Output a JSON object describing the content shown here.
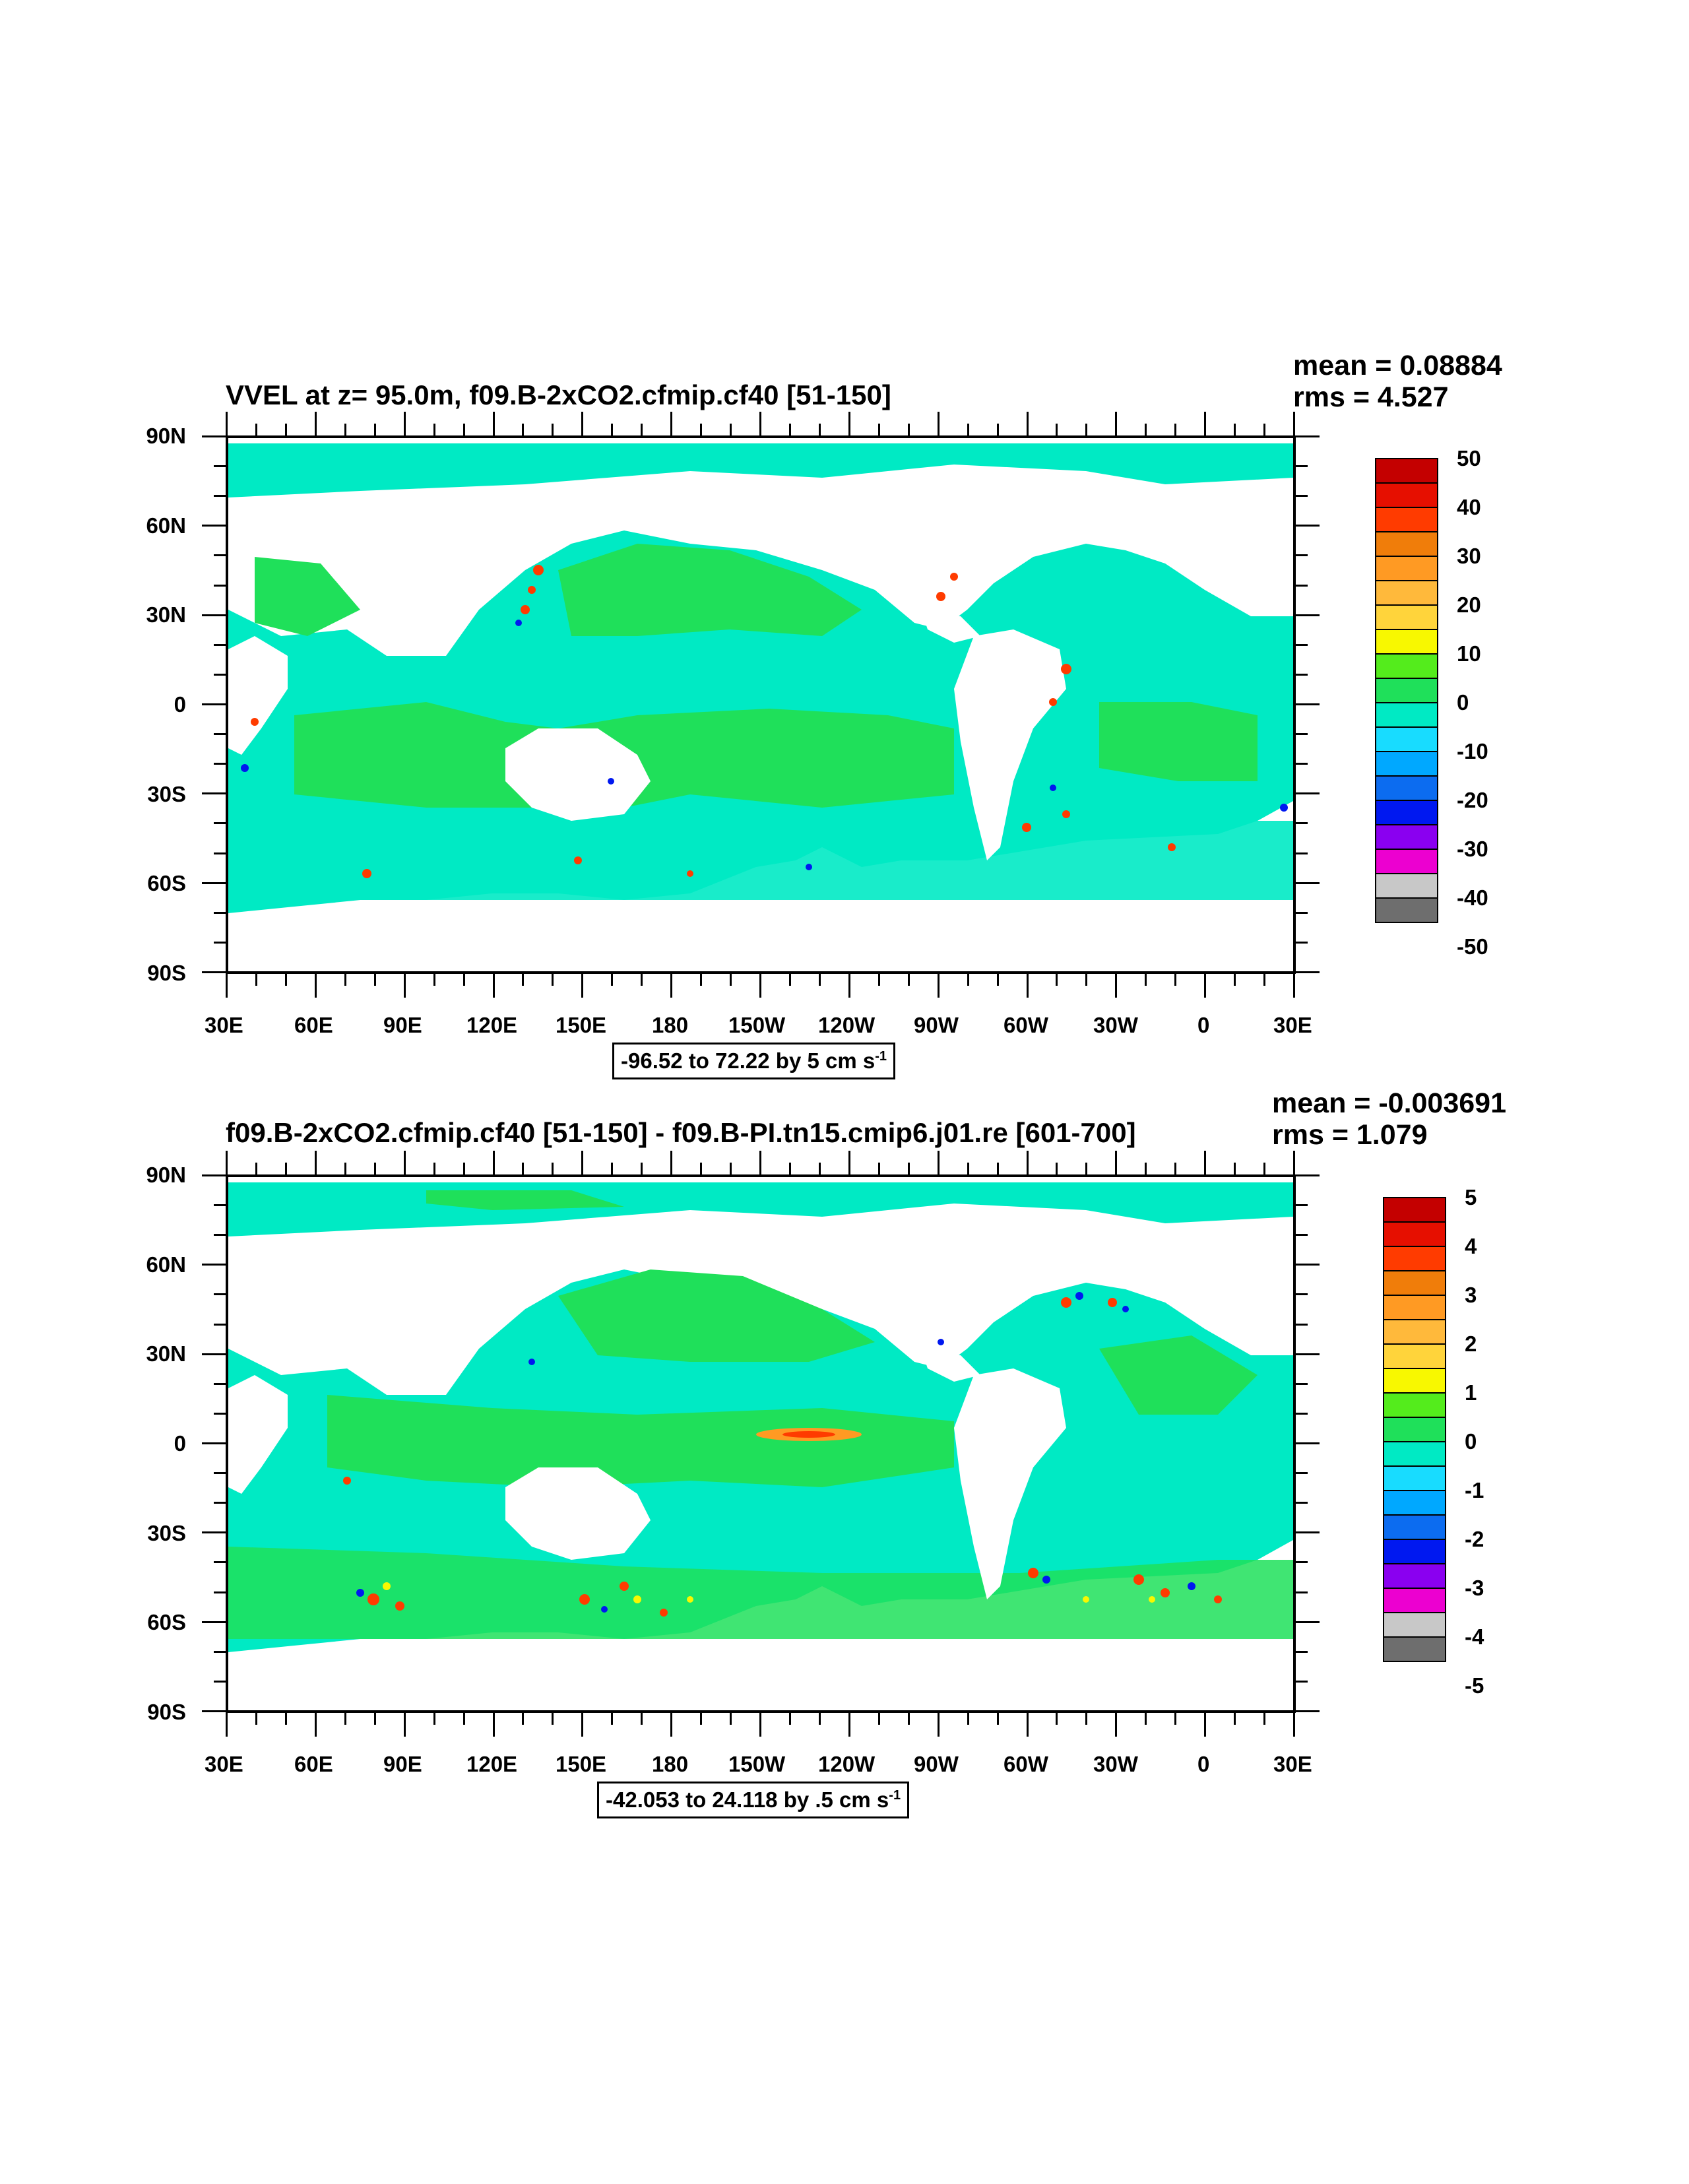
{
  "panels": [
    {
      "title": "VVEL at z=  95.0m, f09.B-2xCO2.cfmip.cf40 [51-150]",
      "mean_label": "mean = 0.08884",
      "rms_label": "rms = 4.527",
      "range_text": "-96.52 to 72.22 by 5 cm s",
      "range_unit_exp": "-1",
      "colorbar_labels": [
        "50",
        "40",
        "30",
        "20",
        "10",
        "0",
        "-10",
        "-20",
        "-30",
        "-40",
        "-50"
      ]
    },
    {
      "title": "f09.B-2xCO2.cfmip.cf40 [51-150] - f09.B-PI.tn15.cmip6.j01.re [601-700]",
      "mean_label": "mean = -0.003691",
      "rms_label": "rms = 1.079",
      "range_text": "-42.053 to 24.118 by .5 cm s",
      "range_unit_exp": "-1",
      "colorbar_labels": [
        "5",
        "4",
        "3",
        "2",
        "1",
        "0",
        "-1",
        "-2",
        "-3",
        "-4",
        "-5"
      ]
    }
  ],
  "lat_labels": [
    "90N",
    "60N",
    "30N",
    "0",
    "30S",
    "60S",
    "90S"
  ],
  "lon_labels": [
    "30E",
    "60E",
    "90E",
    "120E",
    "150E",
    "180",
    "150W",
    "120W",
    "90W",
    "60W",
    "30W",
    "0",
    "30E"
  ],
  "colorbar_colors": [
    "#c40000",
    "#e60f00",
    "#ff3b00",
    "#f07d0a",
    "#ff9a23",
    "#ffb93b",
    "#ffd43b",
    "#f8f800",
    "#54ec1c",
    "#1fe05a",
    "#00eac4",
    "#18dcff",
    "#00a8ff",
    "#0c6cf0",
    "#0018f0",
    "#8a00f0",
    "#ec00d0",
    "#c8c8c8",
    "#6e6e6e"
  ],
  "map_colors": {
    "land": "#ffffff",
    "ocean_main": "#00eac4",
    "ocean_positive": "#1fe05a",
    "ocean_light": "#54ec1c"
  }
}
